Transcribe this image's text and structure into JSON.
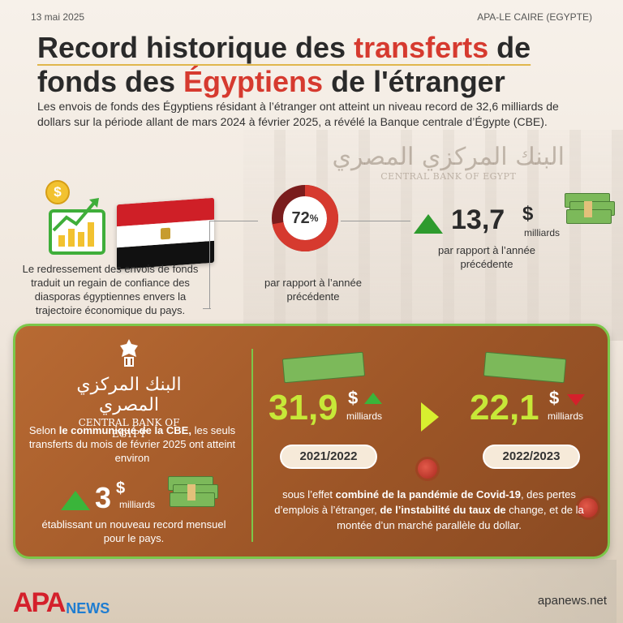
{
  "header": {
    "date": "13 mai 2025",
    "source": "APA-LE CAIRE (EGYPTE)"
  },
  "title": {
    "part1": "Record historique des ",
    "part1_highlight": "transferts",
    "part1_end": " de",
    "part2": "fonds des ",
    "part2_highlight": "Égyptiens",
    "part2_end": " de l'étranger"
  },
  "intro": "Les envois de fonds des Égyptiens résidant à l’étranger ont atteint un niveau record de 32,6 milliards de dollars sur la période allant de mars 2024 à février 2025, a révélé la Banque centrale d’Égypte (CBE).",
  "watermark": {
    "arabic": "البنك المركزي المصري",
    "english": "CENTRAL BANK OF EGYPT"
  },
  "flag_block": {
    "coin_symbol": "$",
    "caption": "Le redressement des envois de fonds traduit un regain de confiance des diasporas égyptiennes envers la trajectoire économique du pays."
  },
  "donut": {
    "value_text": "72",
    "unit": "%",
    "percent": 72,
    "caption": "par rapport à l’année précédente"
  },
  "stat_right": {
    "value": "13,7",
    "currency": "$",
    "unit": "milliards",
    "caption": "par rapport à l’année précédente"
  },
  "panel": {
    "logo": {
      "arabic": "البنك المركزي المصري",
      "english": "CENTRAL BANK OF EGYPT"
    },
    "cbe_text_prefix": "Selon ",
    "cbe_text_bold": "le communiqué de la CBE,",
    "cbe_text_rest": " les seuls transferts du mois de février 2025 ont atteint environ",
    "left_stat": {
      "value": "3",
      "currency": "$",
      "unit": "milliards"
    },
    "left_caption": "établissant un nouveau record mensuel pour le pays.",
    "year1": {
      "value": "31,9",
      "currency": "$",
      "unit": "milliards",
      "label": "2021/2022"
    },
    "year2": {
      "value": "22,1",
      "currency": "$",
      "unit": "milliards",
      "label": "2022/2023"
    },
    "bottom_text_1": "sous l’effet ",
    "bottom_text_bold1": "combiné de la pandémie de Covid-19",
    "bottom_text_2": ", des pertes d’emplois à l’étranger, ",
    "bottom_text_bold2": "de l’instabilité du taux de",
    "bottom_text_3": " change, et de la montée d’un marché parallèle du dollar."
  },
  "footer": {
    "logo_apa": "APA",
    "logo_news": "NEWS",
    "url": "apanews.net"
  },
  "colors": {
    "accent_red": "#d63a2f",
    "panel_brown": "#9c5527",
    "panel_border": "#7bc74a",
    "lime": "#c7e838",
    "up_green": "#2e9b2e",
    "down_red": "#d4202b"
  }
}
